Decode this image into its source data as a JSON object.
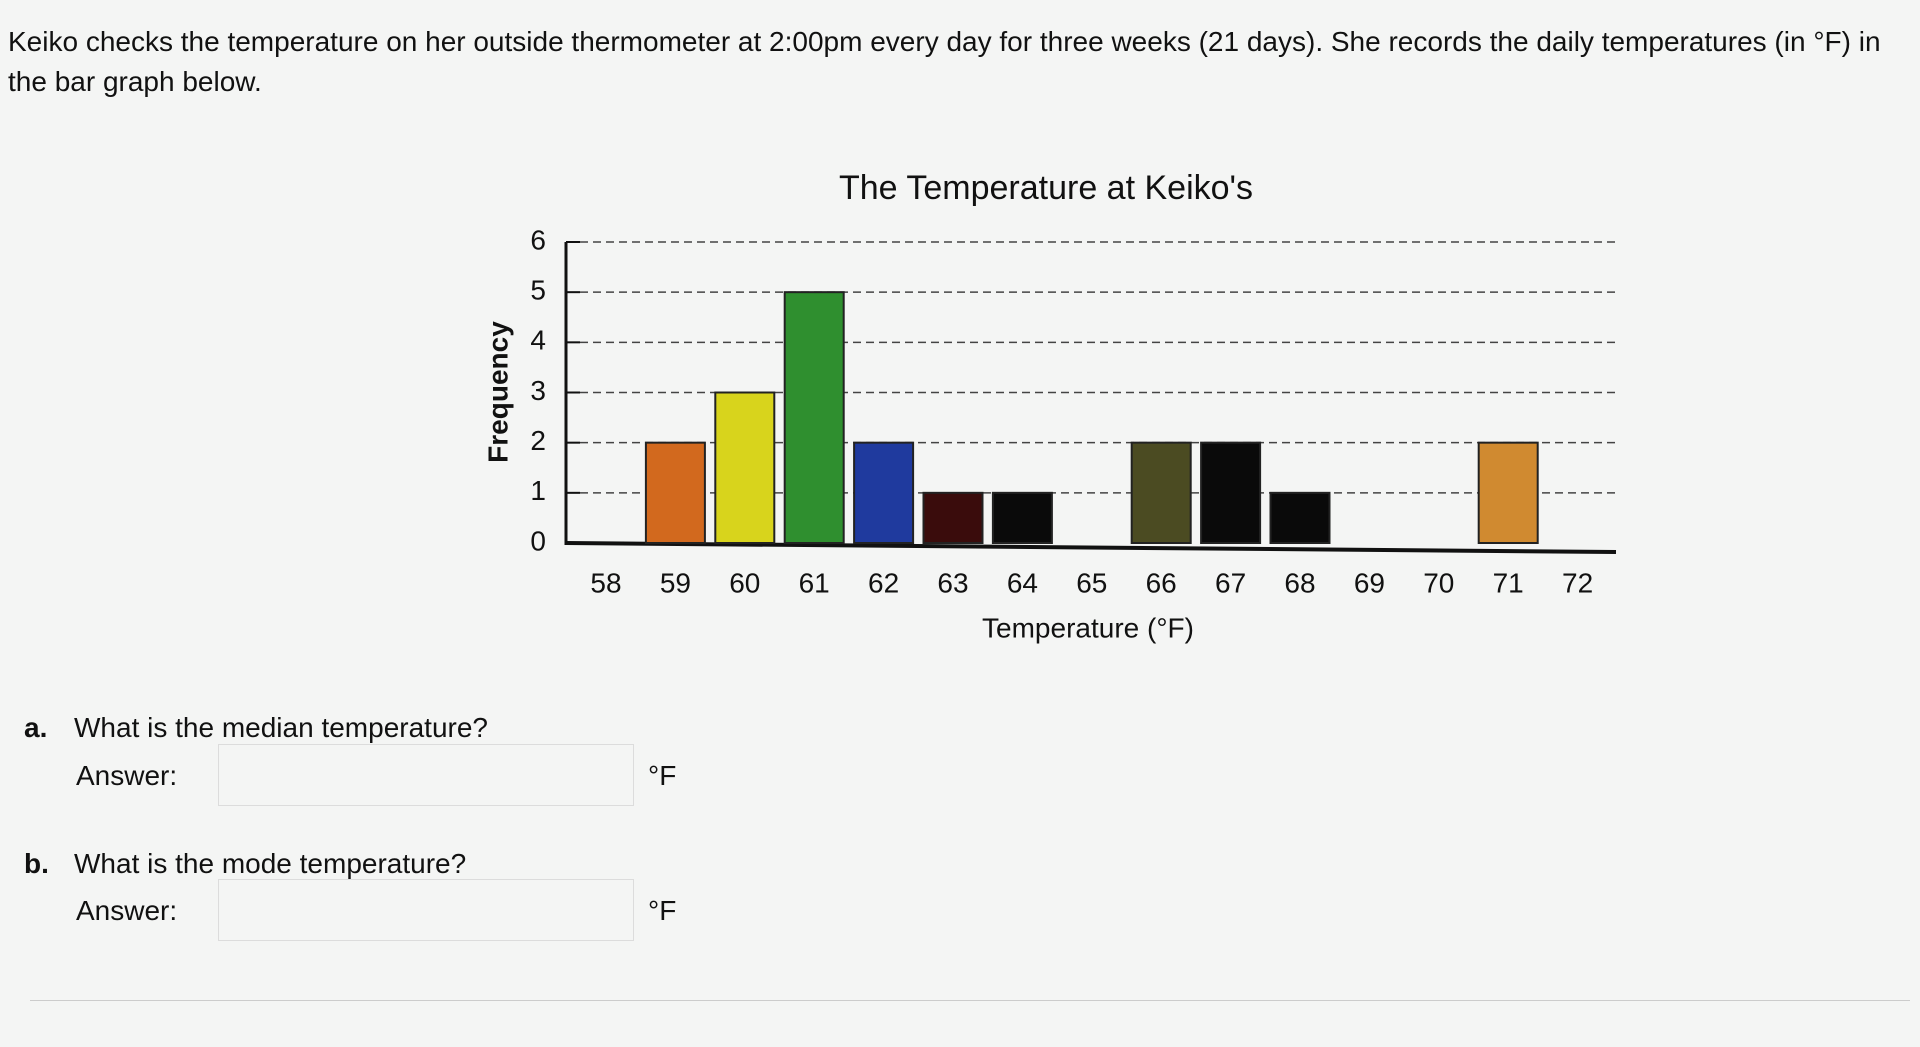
{
  "intro": "Keiko checks the temperature on her outside thermometer at 2:00pm every day for three weeks (21 days).  She records the daily temperatures (in °F) in the bar graph below.",
  "chart_data": {
    "type": "bar",
    "title": "The Temperature  at Keiko's",
    "x_label": "Temperature (°F)",
    "y_label": "Frequency",
    "categories": [
      "58",
      "59",
      "60",
      "61",
      "62",
      "63",
      "64",
      "65",
      "66",
      "67",
      "68",
      "69",
      "70",
      "71",
      "72"
    ],
    "values": [
      0,
      2,
      3,
      5,
      2,
      1,
      1,
      0,
      2,
      2,
      1,
      0,
      0,
      2,
      0
    ],
    "colors": [
      "#000000",
      "#d2691e",
      "#d8d41c",
      "#2f8f2f",
      "#1f3a9e",
      "#3a0c0c",
      "#0a0a0a",
      "#000000",
      "#4b4b22",
      "#0a0a0a",
      "#0a0a0a",
      "#000000",
      "#000000",
      "#d08a30",
      "#000000"
    ],
    "ylim": [
      0,
      6
    ],
    "yticks": [
      0,
      1,
      2,
      3,
      4,
      5,
      6
    ],
    "grid": true
  },
  "questions": [
    {
      "letter": "a.",
      "text": "What is the median temperature?",
      "answer_label": "Answer:",
      "unit": "°F"
    },
    {
      "letter": "b.",
      "text": "What is the mode temperature?",
      "answer_label": "Answer:",
      "unit": "°F"
    }
  ]
}
